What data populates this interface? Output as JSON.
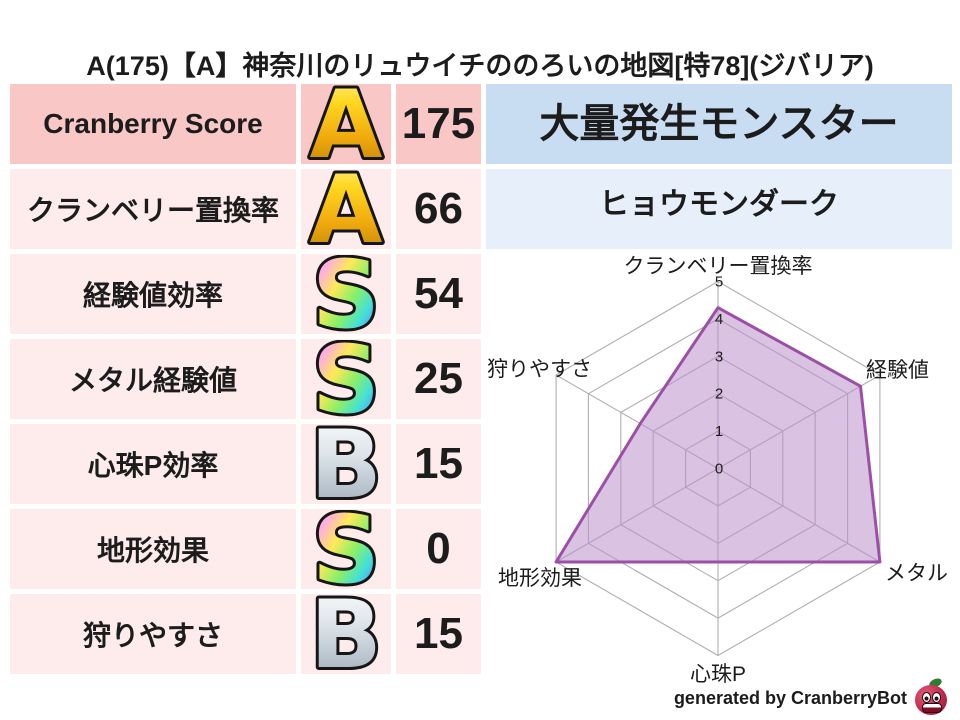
{
  "title": "A(175)【A】神奈川のリュウイチののろいの地図[特78](ジバリア)",
  "table": {
    "rows": [
      {
        "label": "Cranberry Score",
        "rank": "A",
        "rank_style": "gold",
        "value": "175"
      },
      {
        "label": "クランベリー置換率",
        "rank": "A",
        "rank_style": "gold",
        "value": "66"
      },
      {
        "label": "経験値効率",
        "rank": "S",
        "rank_style": "rainbow",
        "value": "54"
      },
      {
        "label": "メタル経験値",
        "rank": "S",
        "rank_style": "rainbow",
        "value": "25"
      },
      {
        "label": "心珠P効率",
        "rank": "B",
        "rank_style": "silver",
        "value": "15"
      },
      {
        "label": "地形効果",
        "rank": "S",
        "rank_style": "rainbow",
        "value": "0"
      },
      {
        "label": "狩りやすさ",
        "rank": "B",
        "rank_style": "silver",
        "value": "15"
      }
    ]
  },
  "monster_panel": {
    "header": "大量発生モンスター",
    "name": "ヒョウモンダーク"
  },
  "chart_data": {
    "type": "radar",
    "axes": [
      "クランベリー置換率",
      "経験値",
      "メタル",
      "心珠P",
      "地形効果",
      "狩りやすさ"
    ],
    "values": [
      4.3,
      4.4,
      5.0,
      2.5,
      5.0,
      2.4
    ],
    "range": [
      0,
      5
    ],
    "tick_labels": [
      "0",
      "1",
      "2",
      "3",
      "4",
      "5"
    ],
    "grid": "hexagonal-rings",
    "legend": "none",
    "fill_color": "#b98fca",
    "stroke_color": "#9b50a6"
  },
  "footer": {
    "credit": "generated by CranberryBot",
    "mascot_icon": "cranberry-mascot-icon"
  },
  "colors": {
    "text": "#1c1c1c",
    "row_header_bg": "#f8c7c6",
    "row_bg": "#fdeceb",
    "monster_header_bg": "#c9ddf2",
    "monster_name_bg": "#e7f0fa",
    "radar_grid": "#b3adb3",
    "rank_gold": "#ffd820",
    "rank_silver": "#c3ccd5",
    "rank_rainbow": "#ff5fd6"
  }
}
